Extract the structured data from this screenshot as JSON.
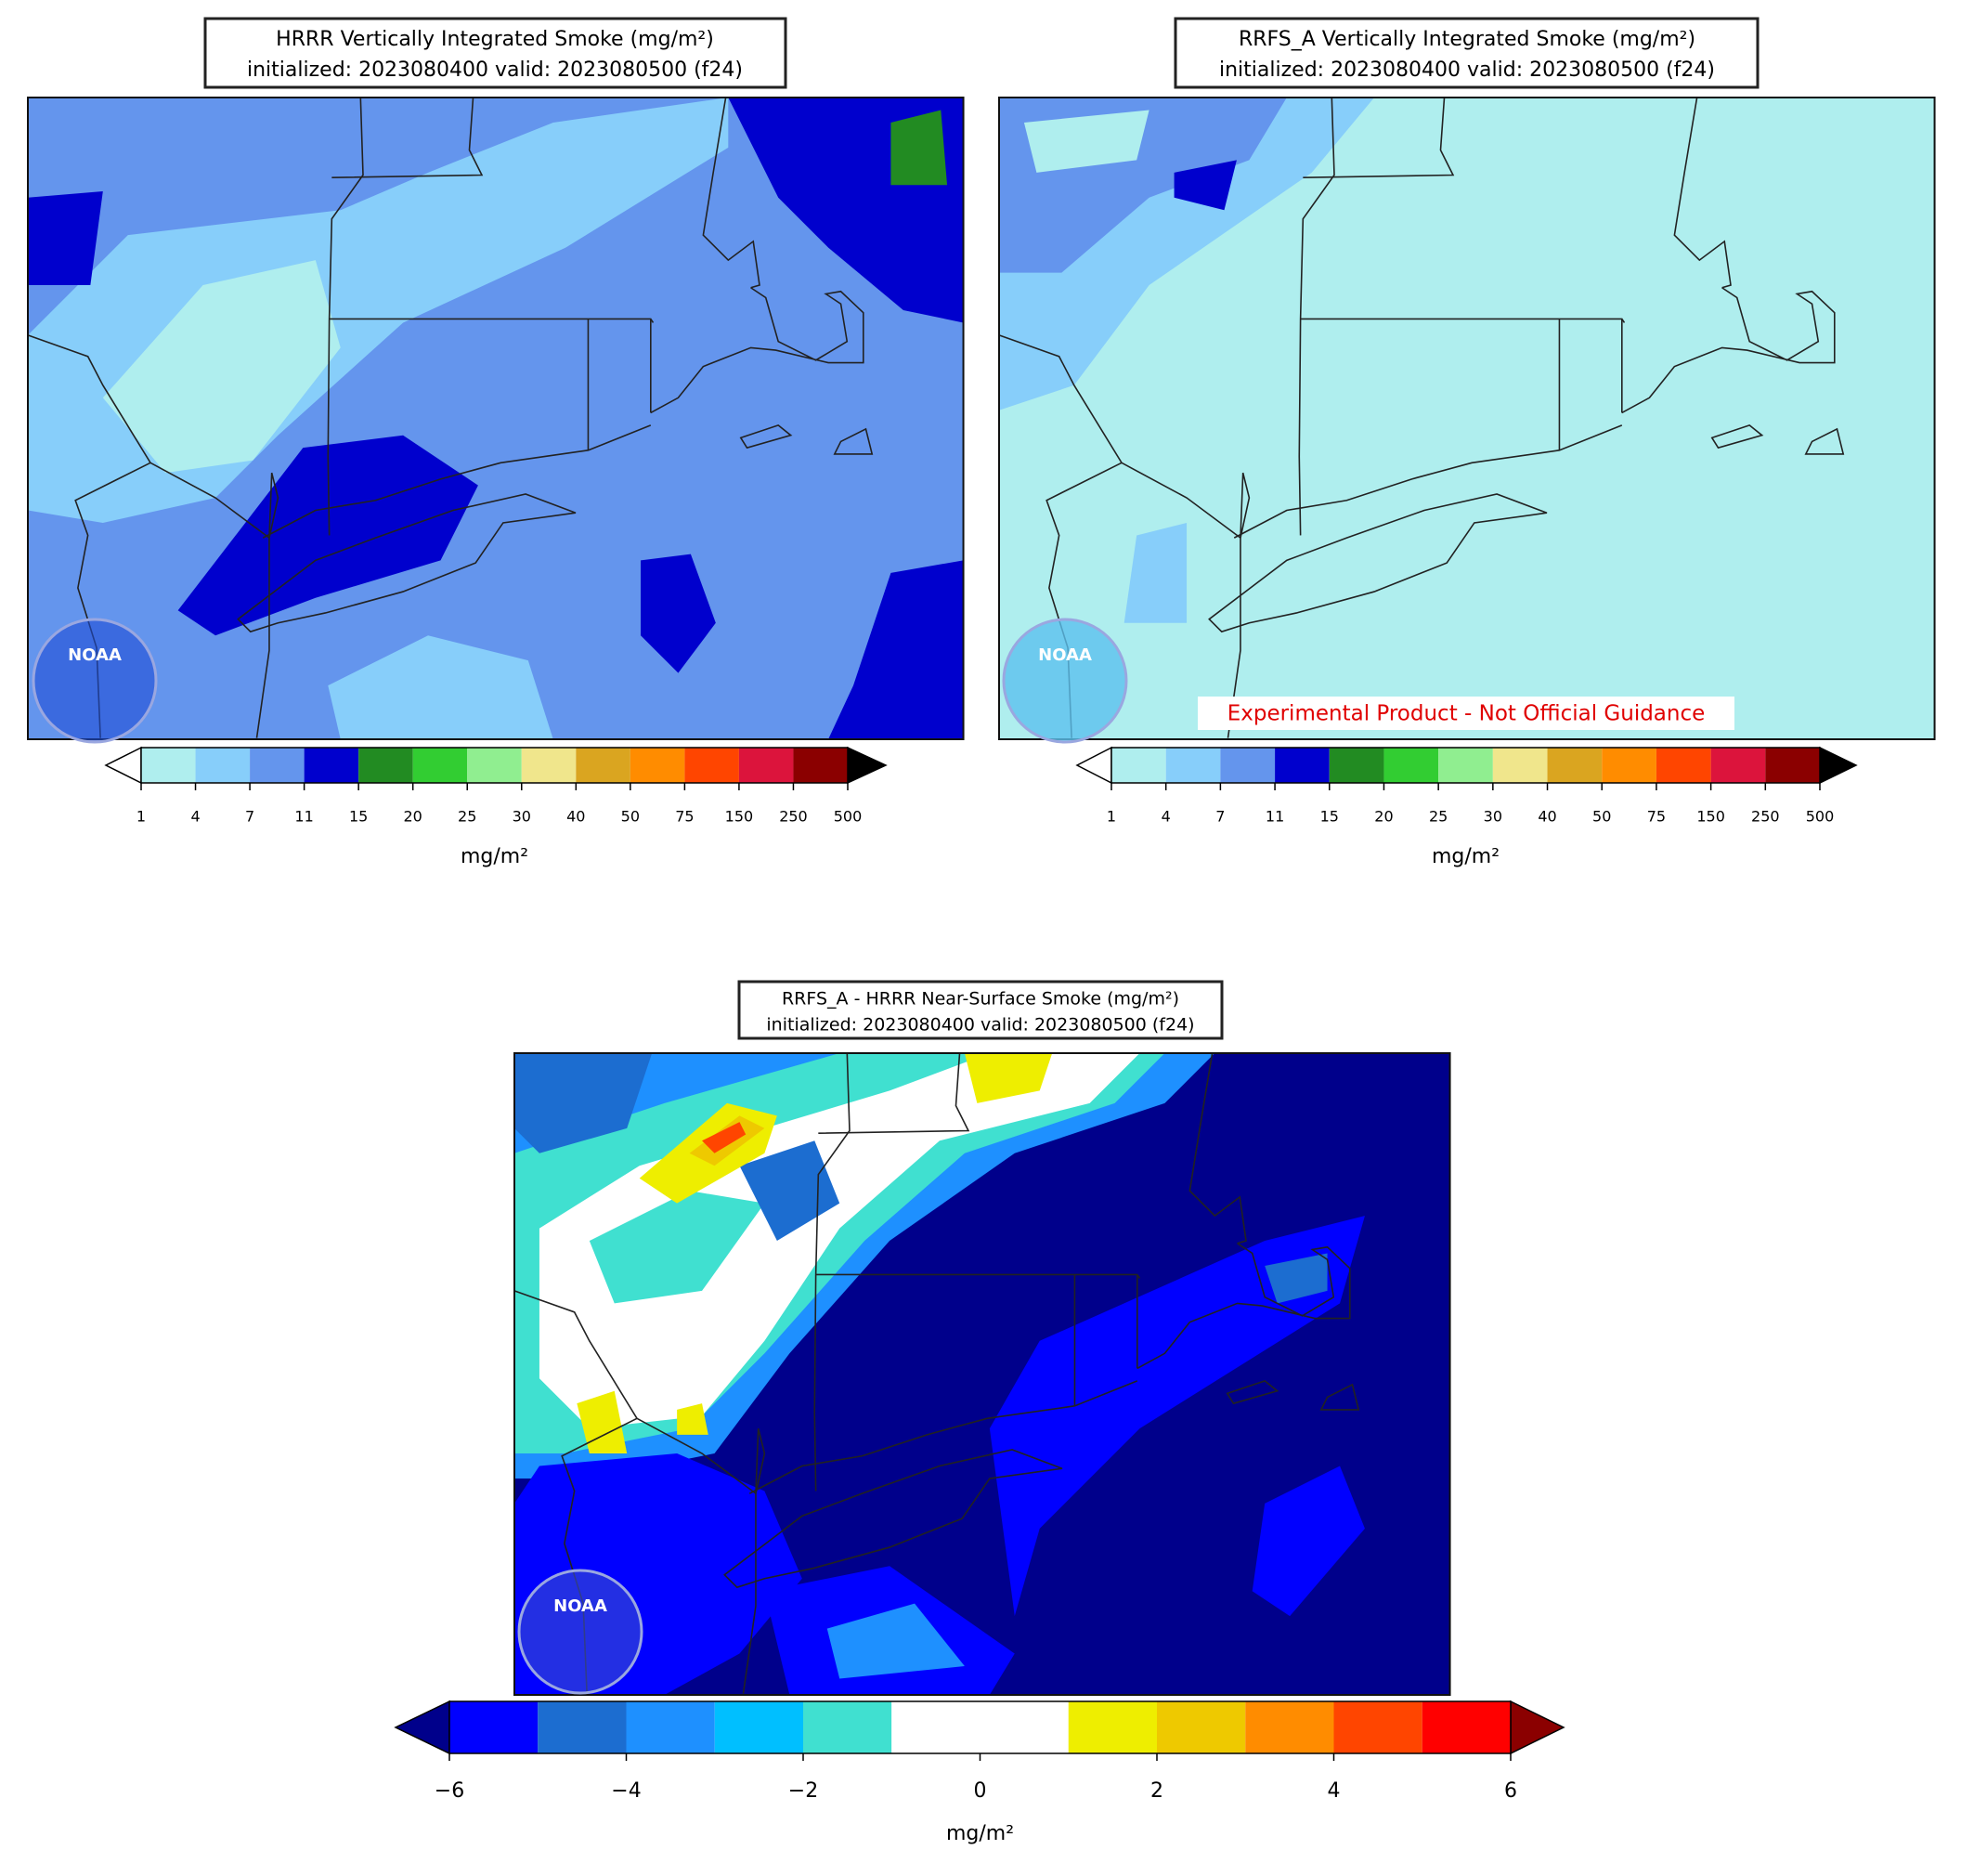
{
  "panels": [
    {
      "title": "HRRR Vertically Integrated Smoke (mg/m²)",
      "subtitle": "initialized: 2023080400 valid: 2023080500 (f24)",
      "logo_text": "NOAA",
      "colorbar": {
        "label": "mg/m²",
        "ticks": [
          1,
          4,
          7,
          11,
          15,
          20,
          25,
          30,
          40,
          50,
          75,
          150,
          250,
          500
        ],
        "colors": [
          "#afeeee",
          "#87cefa",
          "#6495ed",
          "#0000cd",
          "#228b22",
          "#32cd32",
          "#90ee90",
          "#f0e68c",
          "#daa520",
          "#ff8c00",
          "#ff4500",
          "#dc143c",
          "#8b0000"
        ],
        "under_color": "#ffffff",
        "over_color": "#000000"
      }
    },
    {
      "title": "RRFS_A Vertically Integrated Smoke (mg/m²)",
      "subtitle": "initialized: 2023080400 valid: 2023080500 (f24)",
      "logo_text": "NOAA",
      "note": "Experimental Product - Not Official Guidance",
      "colorbar": {
        "label": "mg/m²",
        "ticks": [
          1,
          4,
          7,
          11,
          15,
          20,
          25,
          30,
          40,
          50,
          75,
          150,
          250,
          500
        ],
        "colors": [
          "#afeeee",
          "#87cefa",
          "#6495ed",
          "#0000cd",
          "#228b22",
          "#32cd32",
          "#90ee90",
          "#f0e68c",
          "#daa520",
          "#ff8c00",
          "#ff4500",
          "#dc143c",
          "#8b0000"
        ],
        "under_color": "#ffffff",
        "over_color": "#000000"
      }
    },
    {
      "title": "RRFS_A - HRRR Near-Surface Smoke (mg/m²)",
      "subtitle": "initialized: 2023080400 valid: 2023080500 (f24)",
      "logo_text": "NOAA",
      "colorbar": {
        "label": "mg/m²",
        "xlim": [
          -6,
          6
        ],
        "ticks": [
          {
            "value": -6,
            "label": "−6"
          },
          {
            "value": -4,
            "label": "−4"
          },
          {
            "value": -2,
            "label": "−2"
          },
          0,
          2,
          4,
          6
        ],
        "bounds": [
          -6,
          -5,
          -4,
          -3,
          -2,
          -1,
          0,
          1,
          2,
          3,
          4,
          5,
          6
        ],
        "colors": [
          "#0000ff",
          "#1c6dd0",
          "#1e90ff",
          "#00bfff",
          "#40e0d0",
          "#ffffff",
          "#ffffff",
          "#eeee00",
          "#eec900",
          "#ff8c00",
          "#ff4500",
          "#ff0000"
        ],
        "under_color": "#00008b",
        "over_color": "#8b0000"
      }
    }
  ]
}
